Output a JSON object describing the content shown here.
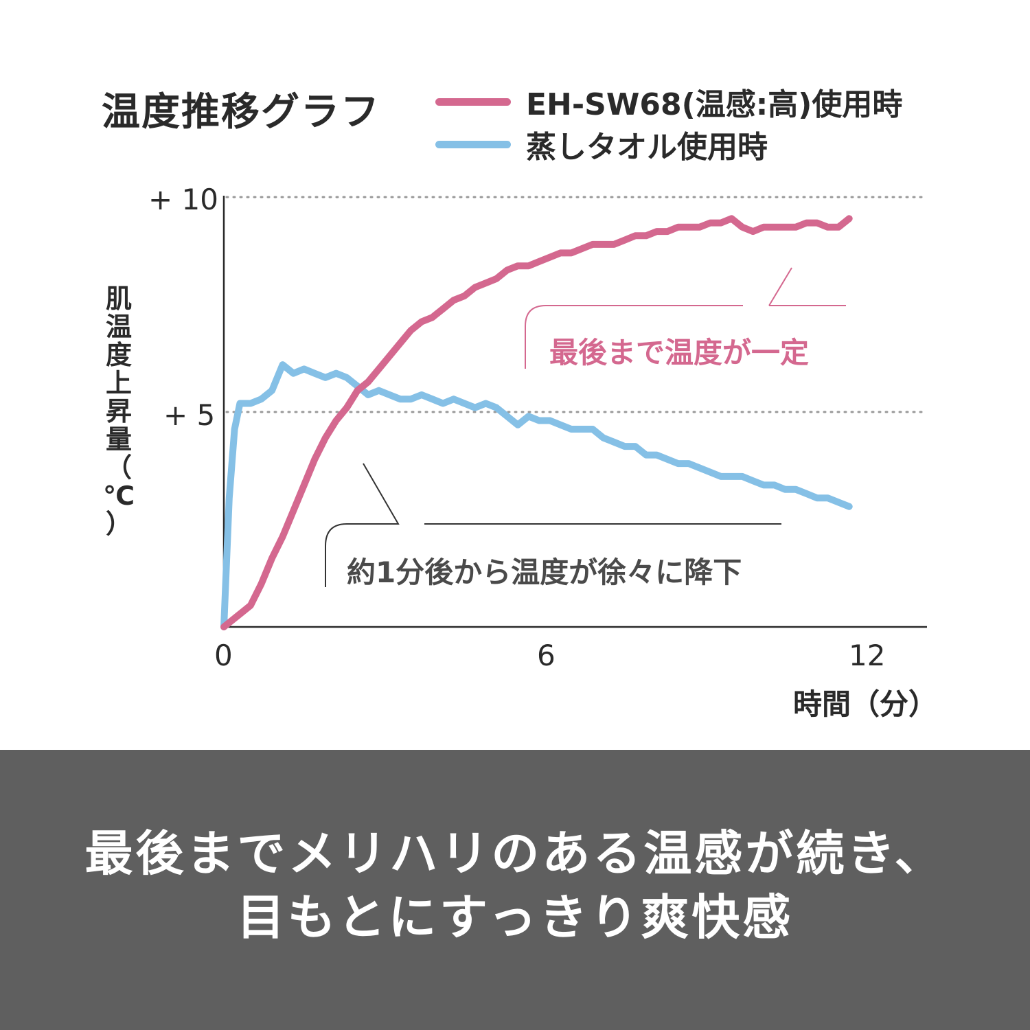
{
  "colors": {
    "pink": "#d4688f",
    "blue": "#85c0e6",
    "banner_bg": "#5f5f5f",
    "text": "#2a2a2a"
  },
  "chart_data": {
    "type": "line",
    "title": "温度推移グラフ",
    "xlabel": "時間（分）",
    "ylabel": [
      "肌",
      "温",
      "度",
      "上",
      "昇",
      "量",
      "（",
      "℃",
      "）"
    ],
    "xlim": [
      0,
      13.1
    ],
    "ylim": [
      0,
      10
    ],
    "x_ticks": [
      {
        "value": 0,
        "label": "0"
      },
      {
        "value": 6,
        "label": "6"
      },
      {
        "value": 12,
        "label": "12"
      }
    ],
    "y_ticks": [
      {
        "value": 5,
        "label": "+ 5"
      },
      {
        "value": 10,
        "label": "+ 10"
      }
    ],
    "grid": "dotted horizontal lines at +5 and +10",
    "legend_position": "top",
    "series": [
      {
        "name": "EH-SW68(温感:高)使用時",
        "color": "#d4688f",
        "points": [
          [
            0,
            0
          ],
          [
            0.3,
            0.3
          ],
          [
            0.5,
            0.5
          ],
          [
            0.7,
            1.0
          ],
          [
            0.9,
            1.6
          ],
          [
            1.1,
            2.1
          ],
          [
            1.3,
            2.7
          ],
          [
            1.5,
            3.3
          ],
          [
            1.7,
            3.9
          ],
          [
            1.9,
            4.4
          ],
          [
            2.1,
            4.8
          ],
          [
            2.3,
            5.1
          ],
          [
            2.5,
            5.5
          ],
          [
            2.7,
            5.7
          ],
          [
            2.9,
            6.0
          ],
          [
            3.1,
            6.3
          ],
          [
            3.3,
            6.6
          ],
          [
            3.5,
            6.9
          ],
          [
            3.7,
            7.1
          ],
          [
            3.9,
            7.2
          ],
          [
            4.1,
            7.4
          ],
          [
            4.3,
            7.6
          ],
          [
            4.5,
            7.7
          ],
          [
            4.7,
            7.9
          ],
          [
            4.9,
            8.0
          ],
          [
            5.1,
            8.1
          ],
          [
            5.3,
            8.3
          ],
          [
            5.5,
            8.4
          ],
          [
            5.7,
            8.4
          ],
          [
            5.9,
            8.5
          ],
          [
            6.1,
            8.6
          ],
          [
            6.3,
            8.7
          ],
          [
            6.5,
            8.7
          ],
          [
            6.7,
            8.8
          ],
          [
            6.9,
            8.9
          ],
          [
            7.1,
            8.9
          ],
          [
            7.3,
            8.9
          ],
          [
            7.5,
            9.0
          ],
          [
            7.7,
            9.1
          ],
          [
            7.9,
            9.1
          ],
          [
            8.1,
            9.2
          ],
          [
            8.3,
            9.2
          ],
          [
            8.5,
            9.3
          ],
          [
            8.7,
            9.3
          ],
          [
            8.9,
            9.3
          ],
          [
            9.1,
            9.4
          ],
          [
            9.3,
            9.4
          ],
          [
            9.5,
            9.5
          ],
          [
            9.7,
            9.3
          ],
          [
            9.9,
            9.2
          ],
          [
            10.1,
            9.3
          ],
          [
            10.3,
            9.3
          ],
          [
            10.5,
            9.3
          ],
          [
            10.7,
            9.3
          ],
          [
            10.9,
            9.4
          ],
          [
            11.1,
            9.4
          ],
          [
            11.3,
            9.3
          ],
          [
            11.5,
            9.3
          ],
          [
            11.7,
            9.5
          ]
        ]
      },
      {
        "name": "蒸しタオル使用時",
        "color": "#85c0e6",
        "points": [
          [
            0,
            0
          ],
          [
            0.1,
            3.0
          ],
          [
            0.2,
            4.6
          ],
          [
            0.3,
            5.2
          ],
          [
            0.5,
            5.2
          ],
          [
            0.7,
            5.3
          ],
          [
            0.9,
            5.5
          ],
          [
            1.0,
            5.8
          ],
          [
            1.1,
            6.1
          ],
          [
            1.3,
            5.9
          ],
          [
            1.5,
            6.0
          ],
          [
            1.7,
            5.9
          ],
          [
            1.9,
            5.8
          ],
          [
            2.1,
            5.9
          ],
          [
            2.3,
            5.8
          ],
          [
            2.5,
            5.6
          ],
          [
            2.7,
            5.4
          ],
          [
            2.9,
            5.5
          ],
          [
            3.1,
            5.4
          ],
          [
            3.3,
            5.3
          ],
          [
            3.5,
            5.3
          ],
          [
            3.7,
            5.4
          ],
          [
            3.9,
            5.3
          ],
          [
            4.1,
            5.2
          ],
          [
            4.3,
            5.3
          ],
          [
            4.5,
            5.2
          ],
          [
            4.7,
            5.1
          ],
          [
            4.9,
            5.2
          ],
          [
            5.1,
            5.1
          ],
          [
            5.3,
            4.9
          ],
          [
            5.5,
            4.7
          ],
          [
            5.7,
            4.9
          ],
          [
            5.9,
            4.8
          ],
          [
            6.1,
            4.8
          ],
          [
            6.3,
            4.7
          ],
          [
            6.5,
            4.6
          ],
          [
            6.7,
            4.6
          ],
          [
            6.9,
            4.6
          ],
          [
            7.1,
            4.4
          ],
          [
            7.3,
            4.3
          ],
          [
            7.5,
            4.2
          ],
          [
            7.7,
            4.2
          ],
          [
            7.9,
            4.0
          ],
          [
            8.1,
            4.0
          ],
          [
            8.3,
            3.9
          ],
          [
            8.5,
            3.8
          ],
          [
            8.7,
            3.8
          ],
          [
            8.9,
            3.7
          ],
          [
            9.1,
            3.6
          ],
          [
            9.3,
            3.5
          ],
          [
            9.5,
            3.5
          ],
          [
            9.7,
            3.5
          ],
          [
            9.9,
            3.4
          ],
          [
            10.1,
            3.3
          ],
          [
            10.3,
            3.3
          ],
          [
            10.5,
            3.2
          ],
          [
            10.7,
            3.2
          ],
          [
            10.9,
            3.1
          ],
          [
            11.1,
            3.0
          ],
          [
            11.3,
            3.0
          ],
          [
            11.5,
            2.9
          ],
          [
            11.7,
            2.8
          ]
        ]
      }
    ],
    "annotations": [
      {
        "text": "最後まで温度が一定",
        "color": "#d4688f"
      },
      {
        "text": "約1分後から温度が徐々に降下",
        "color": "#4a4a4a"
      }
    ]
  },
  "banner": {
    "line1": "最後までメリハリのある温感が続き、",
    "line2": "目もとにすっきり爽快感"
  }
}
